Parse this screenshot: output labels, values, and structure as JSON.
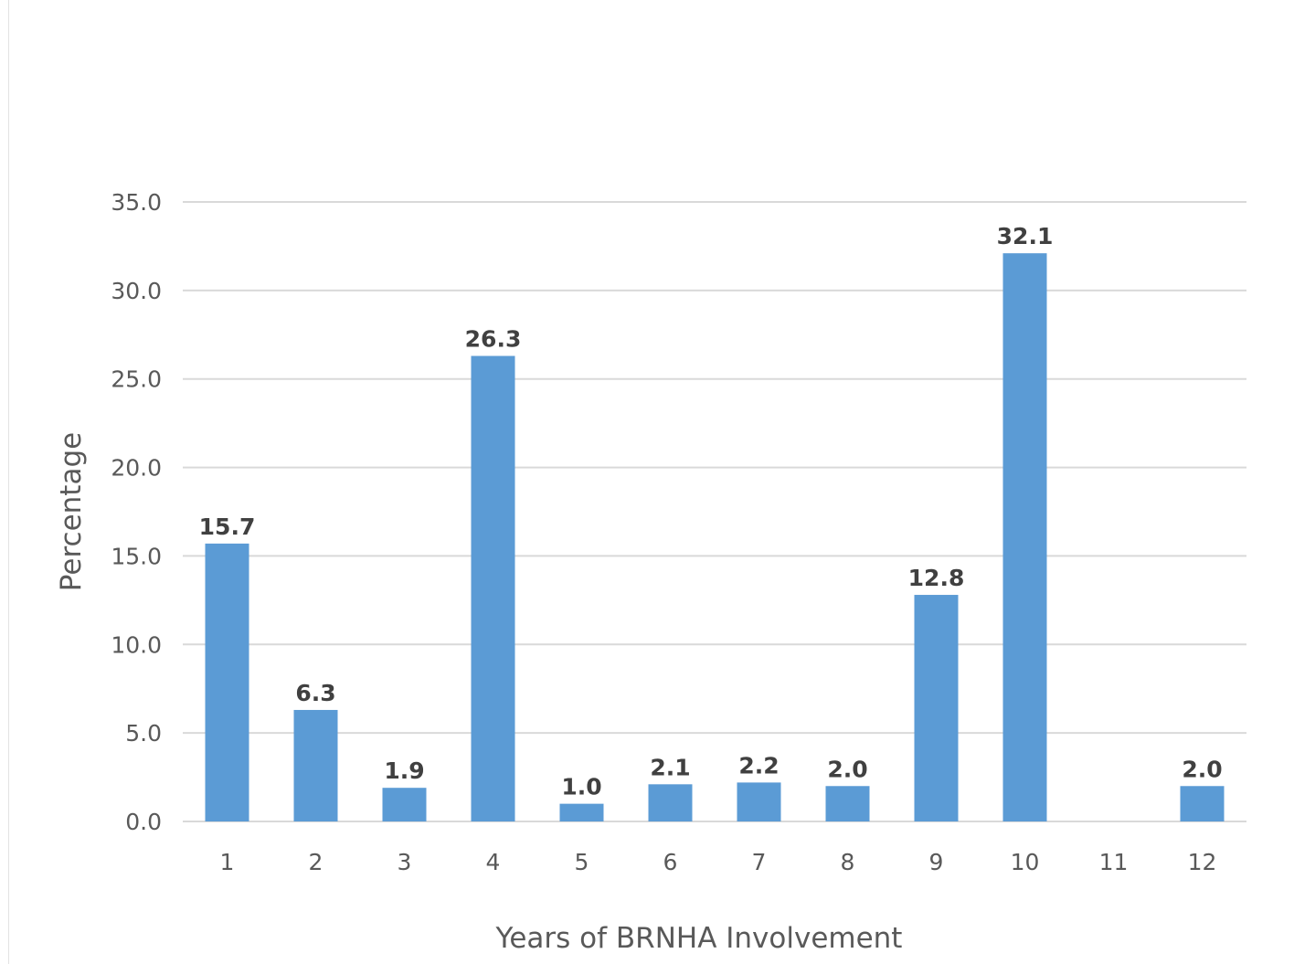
{
  "chart_data": {
    "type": "bar",
    "title": "",
    "xlabel": "Years of BRNHA Involvement",
    "ylabel": "Percentage",
    "categories": [
      "1",
      "2",
      "3",
      "4",
      "5",
      "6",
      "7",
      "8",
      "9",
      "10",
      "11",
      "12"
    ],
    "values": [
      15.7,
      6.3,
      1.9,
      26.3,
      1.0,
      2.1,
      2.2,
      2.0,
      12.8,
      32.1,
      null,
      2.0
    ],
    "data_labels": [
      "15.7",
      "6.3",
      "1.9",
      "26.3",
      "1.0",
      "2.1",
      "2.2",
      "2.0",
      "12.8",
      "32.1",
      "",
      "2.0"
    ],
    "yticks": [
      "0.0",
      "5.0",
      "10.0",
      "15.0",
      "20.0",
      "25.0",
      "30.0",
      "35.0"
    ],
    "ylim": [
      0,
      35
    ],
    "grid": true,
    "legend": "none",
    "bar_color": "#5b9bd5",
    "grid_color": "#d9d9d9"
  }
}
